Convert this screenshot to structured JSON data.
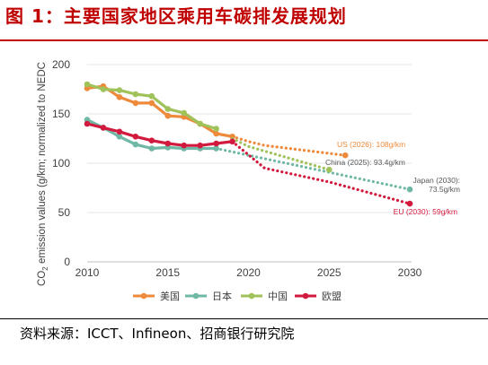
{
  "title": "图 1：主要国家地区乘用车碳排发展规划",
  "source": "资料来源：ICCT、Infineon、招商银行研究院",
  "chart_data": {
    "type": "line",
    "ylabel_parts": [
      "CO",
      "2",
      " emission values (g/km; normalized to NEDC"
    ],
    "x_ticks": [
      2010,
      2015,
      2020,
      2025,
      2030
    ],
    "y_ticks": [
      0,
      50,
      100,
      150,
      200
    ],
    "xlim": [
      2010,
      2030
    ],
    "ylim": [
      0,
      200
    ],
    "grid": "horizontal",
    "legend_position": "bottom",
    "series": [
      {
        "name": "美国",
        "color": "#ee8a3b",
        "actual": [
          [
            2010,
            176
          ],
          [
            2011,
            178
          ],
          [
            2012,
            167
          ],
          [
            2013,
            161
          ],
          [
            2014,
            161
          ],
          [
            2015,
            148
          ],
          [
            2016,
            147
          ],
          [
            2017,
            140
          ],
          [
            2018,
            130
          ],
          [
            2019,
            127
          ]
        ],
        "target": [
          [
            2019,
            127
          ],
          [
            2020,
            122
          ],
          [
            2021,
            118
          ],
          [
            2022,
            116
          ],
          [
            2023,
            114
          ],
          [
            2024,
            112
          ],
          [
            2025,
            110
          ],
          [
            2026,
            108
          ]
        ],
        "annotation": "US (2026): 108g/km"
      },
      {
        "name": "日本",
        "color": "#6fb8a5",
        "actual": [
          [
            2010,
            144
          ],
          [
            2011,
            136
          ],
          [
            2012,
            127
          ],
          [
            2013,
            119
          ],
          [
            2014,
            115
          ],
          [
            2015,
            116
          ],
          [
            2016,
            115
          ],
          [
            2017,
            115
          ],
          [
            2018,
            115
          ]
        ],
        "target": [
          [
            2018,
            115
          ],
          [
            2030,
            73.5
          ]
        ],
        "annotation_lines": [
          "Japan (2030):",
          "73.5g/km"
        ]
      },
      {
        "name": "中国",
        "color": "#9fc25a",
        "actual": [
          [
            2010,
            180
          ],
          [
            2011,
            175
          ],
          [
            2012,
            174
          ],
          [
            2013,
            170
          ],
          [
            2014,
            168
          ],
          [
            2015,
            155
          ],
          [
            2016,
            151
          ],
          [
            2017,
            140
          ],
          [
            2018,
            135
          ]
        ],
        "target": [
          [
            2019,
            125
          ],
          [
            2020,
            117
          ],
          [
            2025,
            93.4
          ]
        ],
        "annotation": "China (2025): 93.4g/km"
      },
      {
        "name": "欧盟",
        "color": "#d21a3e",
        "actual": [
          [
            2010,
            140
          ],
          [
            2011,
            136
          ],
          [
            2012,
            132
          ],
          [
            2013,
            127
          ],
          [
            2014,
            123
          ],
          [
            2015,
            120
          ],
          [
            2016,
            118
          ],
          [
            2017,
            118
          ],
          [
            2018,
            120
          ],
          [
            2019,
            122
          ]
        ],
        "target": [
          [
            2019,
            122
          ],
          [
            2021,
            95
          ],
          [
            2025,
            81
          ],
          [
            2030,
            59
          ]
        ],
        "annotation": "EU (2030): 59g/km"
      }
    ]
  }
}
